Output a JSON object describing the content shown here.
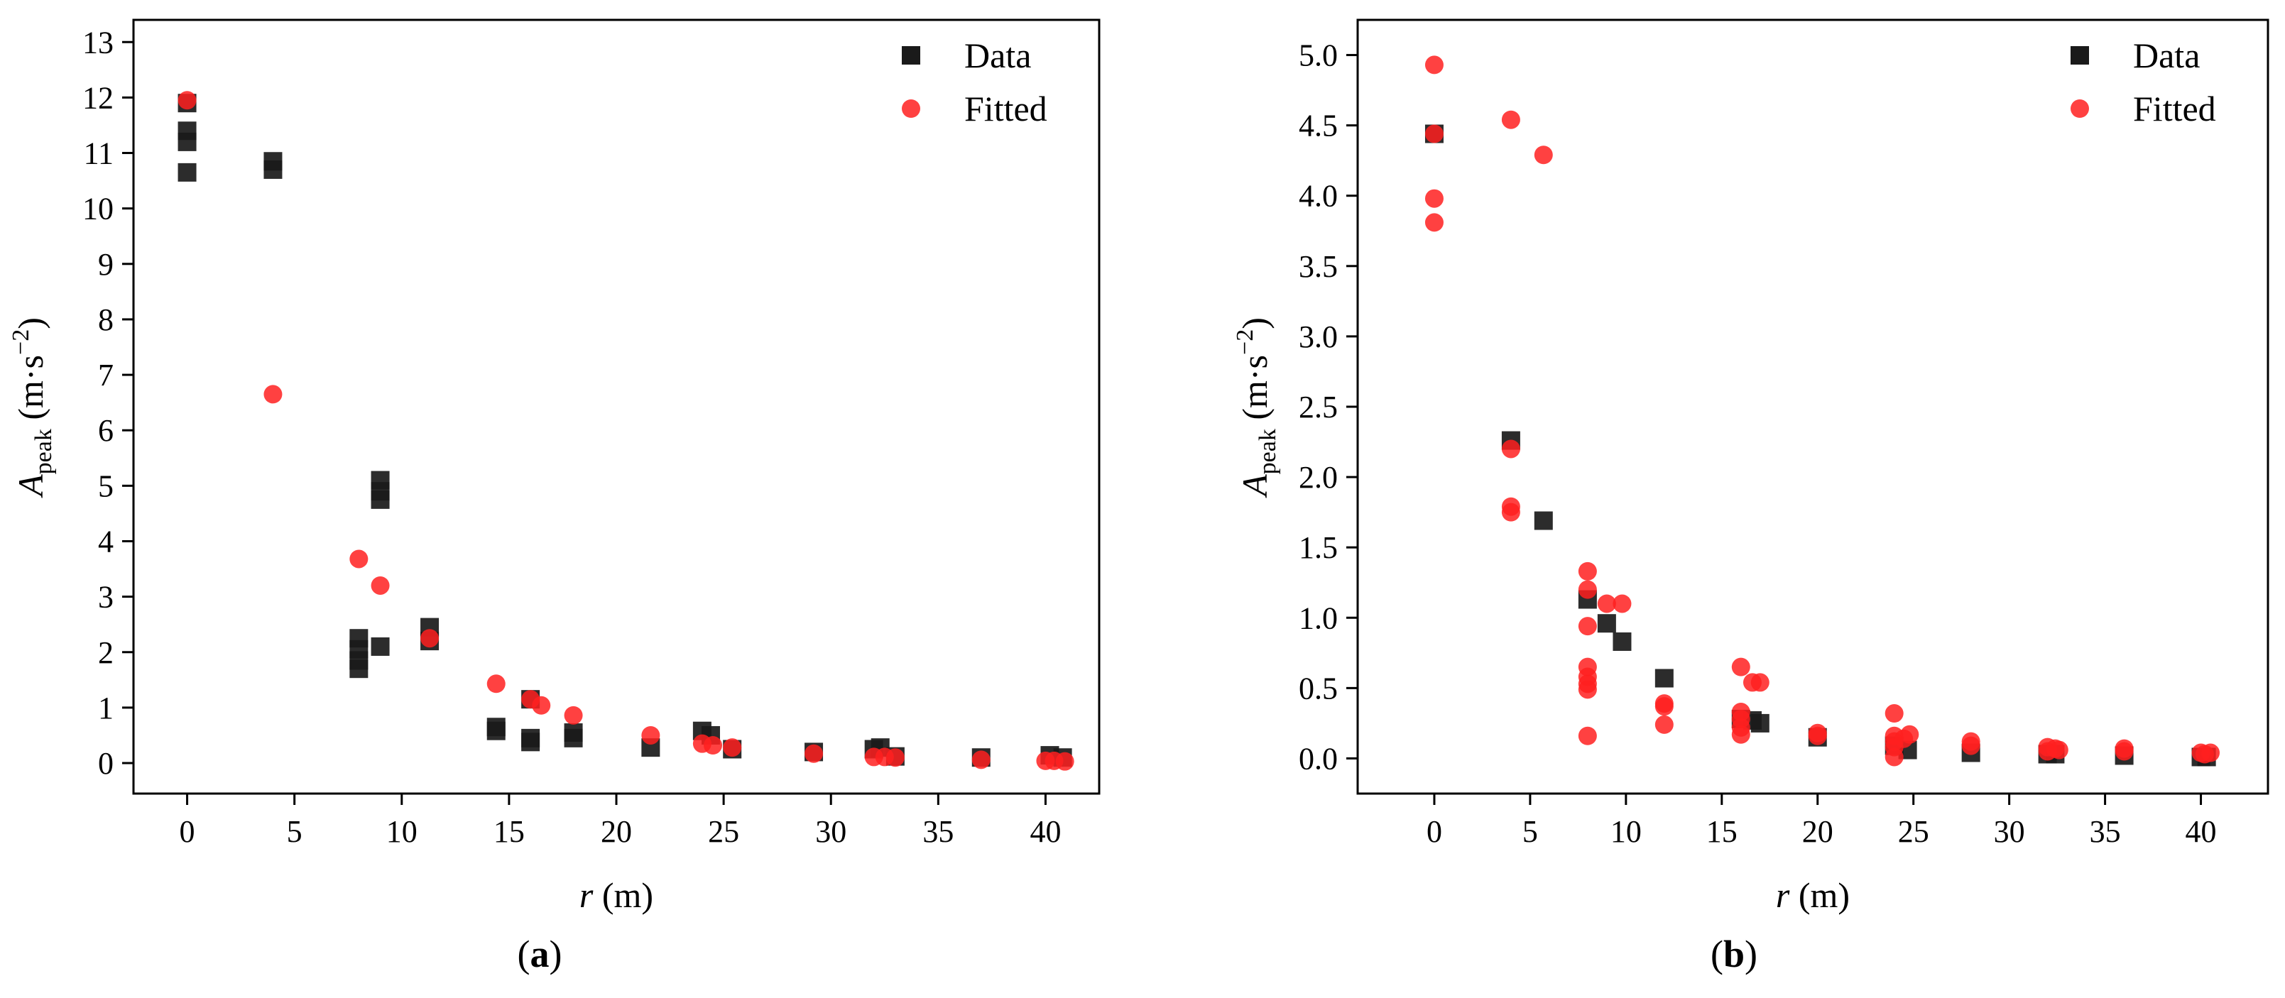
{
  "colors": {
    "data": "#1a1a1a",
    "fitted": "#ff2020",
    "axis": "#000000"
  },
  "chart_data": [
    {
      "type": "scatter",
      "caption_open": "(",
      "caption": "a",
      "caption_close": ")",
      "xlabel_var": "r",
      "xlabel_unit": " (m)",
      "ylabel_var": "A",
      "ylabel_sub": "peak",
      "ylabel_unit_open": " (m·s",
      "ylabel_sup": "−2",
      "ylabel_unit_close": ")",
      "xlim": [
        -2.5,
        42.5
      ],
      "ylim": [
        -0.55,
        13.4
      ],
      "xticks": [
        0,
        5,
        10,
        15,
        20,
        25,
        30,
        35,
        40
      ],
      "yticks": [
        0,
        1,
        2,
        3,
        4,
        5,
        6,
        7,
        8,
        9,
        10,
        11,
        12,
        13
      ],
      "ytick_decimals": 0,
      "legend_position": "top-right",
      "series": [
        {
          "name": "Data",
          "marker": "square",
          "points": [
            [
              0,
              11.9
            ],
            [
              0,
              11.4
            ],
            [
              0,
              11.2
            ],
            [
              0,
              10.65
            ],
            [
              4,
              10.85
            ],
            [
              4,
              10.7
            ],
            [
              8,
              2.25
            ],
            [
              8,
              2.05
            ],
            [
              8,
              1.85
            ],
            [
              8,
              1.7
            ],
            [
              9,
              5.1
            ],
            [
              9,
              4.9
            ],
            [
              9,
              4.75
            ],
            [
              9,
              2.1
            ],
            [
              11.3,
              2.45
            ],
            [
              11.3,
              2.2
            ],
            [
              14.4,
              0.65
            ],
            [
              14.4,
              0.58
            ],
            [
              16,
              1.15
            ],
            [
              16,
              0.45
            ],
            [
              16,
              0.38
            ],
            [
              18,
              0.55
            ],
            [
              18,
              0.45
            ],
            [
              21.6,
              0.28
            ],
            [
              24,
              0.58
            ],
            [
              24.4,
              0.5
            ],
            [
              25.4,
              0.25
            ],
            [
              29.2,
              0.2
            ],
            [
              32,
              0.25
            ],
            [
              32.3,
              0.28
            ],
            [
              33,
              0.12
            ],
            [
              37,
              0.1
            ],
            [
              40.2,
              0.14
            ],
            [
              40.8,
              0.1
            ]
          ]
        },
        {
          "name": "Fitted",
          "marker": "circle",
          "points": [
            [
              0,
              11.95
            ],
            [
              4,
              6.65
            ],
            [
              8,
              3.68
            ],
            [
              9,
              3.2
            ],
            [
              11.3,
              2.25
            ],
            [
              14.4,
              1.43
            ],
            [
              16,
              1.15
            ],
            [
              16.5,
              1.04
            ],
            [
              18,
              0.86
            ],
            [
              21.6,
              0.5
            ],
            [
              24,
              0.35
            ],
            [
              24.5,
              0.32
            ],
            [
              25.4,
              0.28
            ],
            [
              29.2,
              0.17
            ],
            [
              32,
              0.11
            ],
            [
              32.5,
              0.11
            ],
            [
              33,
              0.1
            ],
            [
              37,
              0.06
            ],
            [
              40,
              0.04
            ],
            [
              40.4,
              0.04
            ],
            [
              40.9,
              0.03
            ]
          ]
        }
      ]
    },
    {
      "type": "scatter",
      "caption_open": "(",
      "caption": "b",
      "caption_close": ")",
      "xlabel_var": "r",
      "xlabel_unit": " (m)",
      "ylabel_var": "A",
      "ylabel_sub": "peak",
      "ylabel_unit_open": " (m·s",
      "ylabel_sup": "−2",
      "ylabel_unit_close": ")",
      "xlim": [
        -4.0,
        43.5
      ],
      "ylim": [
        -0.25,
        5.25
      ],
      "xticks": [
        0,
        5,
        10,
        15,
        20,
        25,
        30,
        35,
        40
      ],
      "yticks": [
        0,
        0.5,
        1.0,
        1.5,
        2.0,
        2.5,
        3.0,
        3.5,
        4.0,
        4.5,
        5.0
      ],
      "ytick_decimals": 1,
      "legend_position": "top-right",
      "series": [
        {
          "name": "Data",
          "marker": "square",
          "points": [
            [
              0,
              4.44
            ],
            [
              4,
              2.26
            ],
            [
              5.7,
              1.69
            ],
            [
              8,
              1.13
            ],
            [
              9,
              0.96
            ],
            [
              9.8,
              0.83
            ],
            [
              12,
              0.57
            ],
            [
              16,
              0.28
            ],
            [
              16.6,
              0.27
            ],
            [
              17,
              0.25
            ],
            [
              20,
              0.15
            ],
            [
              24,
              0.09
            ],
            [
              24.7,
              0.06
            ],
            [
              28,
              0.04
            ],
            [
              32,
              0.03
            ],
            [
              32.4,
              0.03
            ],
            [
              36,
              0.02
            ],
            [
              40,
              0.01
            ],
            [
              40.3,
              0.01
            ]
          ]
        },
        {
          "name": "Fitted",
          "marker": "circle",
          "points": [
            [
              0,
              4.93
            ],
            [
              0,
              4.44
            ],
            [
              0,
              3.98
            ],
            [
              0,
              3.81
            ],
            [
              4,
              4.54
            ],
            [
              4,
              2.2
            ],
            [
              4,
              1.79
            ],
            [
              4,
              1.75
            ],
            [
              5.7,
              4.29
            ],
            [
              8,
              1.33
            ],
            [
              8,
              1.2
            ],
            [
              8,
              0.94
            ],
            [
              8,
              0.65
            ],
            [
              8,
              0.58
            ],
            [
              8,
              0.53
            ],
            [
              8,
              0.49
            ],
            [
              8,
              0.16
            ],
            [
              9,
              1.1
            ],
            [
              9.8,
              1.1
            ],
            [
              12,
              0.39
            ],
            [
              12,
              0.37
            ],
            [
              12,
              0.24
            ],
            [
              16,
              0.65
            ],
            [
              16,
              0.33
            ],
            [
              16,
              0.28
            ],
            [
              16,
              0.22
            ],
            [
              16,
              0.17
            ],
            [
              16.6,
              0.54
            ],
            [
              17,
              0.54
            ],
            [
              20,
              0.18
            ],
            [
              20,
              0.16
            ],
            [
              24,
              0.32
            ],
            [
              24,
              0.16
            ],
            [
              24,
              0.12
            ],
            [
              24,
              0.08
            ],
            [
              24,
              0.01
            ],
            [
              24.5,
              0.14
            ],
            [
              24.8,
              0.17
            ],
            [
              28,
              0.12
            ],
            [
              28,
              0.09
            ],
            [
              32,
              0.08
            ],
            [
              32,
              0.05
            ],
            [
              32.4,
              0.07
            ],
            [
              32.6,
              0.06
            ],
            [
              36,
              0.07
            ],
            [
              36,
              0.05
            ],
            [
              40,
              0.04
            ],
            [
              40.2,
              0.03
            ],
            [
              40.5,
              0.04
            ]
          ]
        }
      ]
    }
  ]
}
